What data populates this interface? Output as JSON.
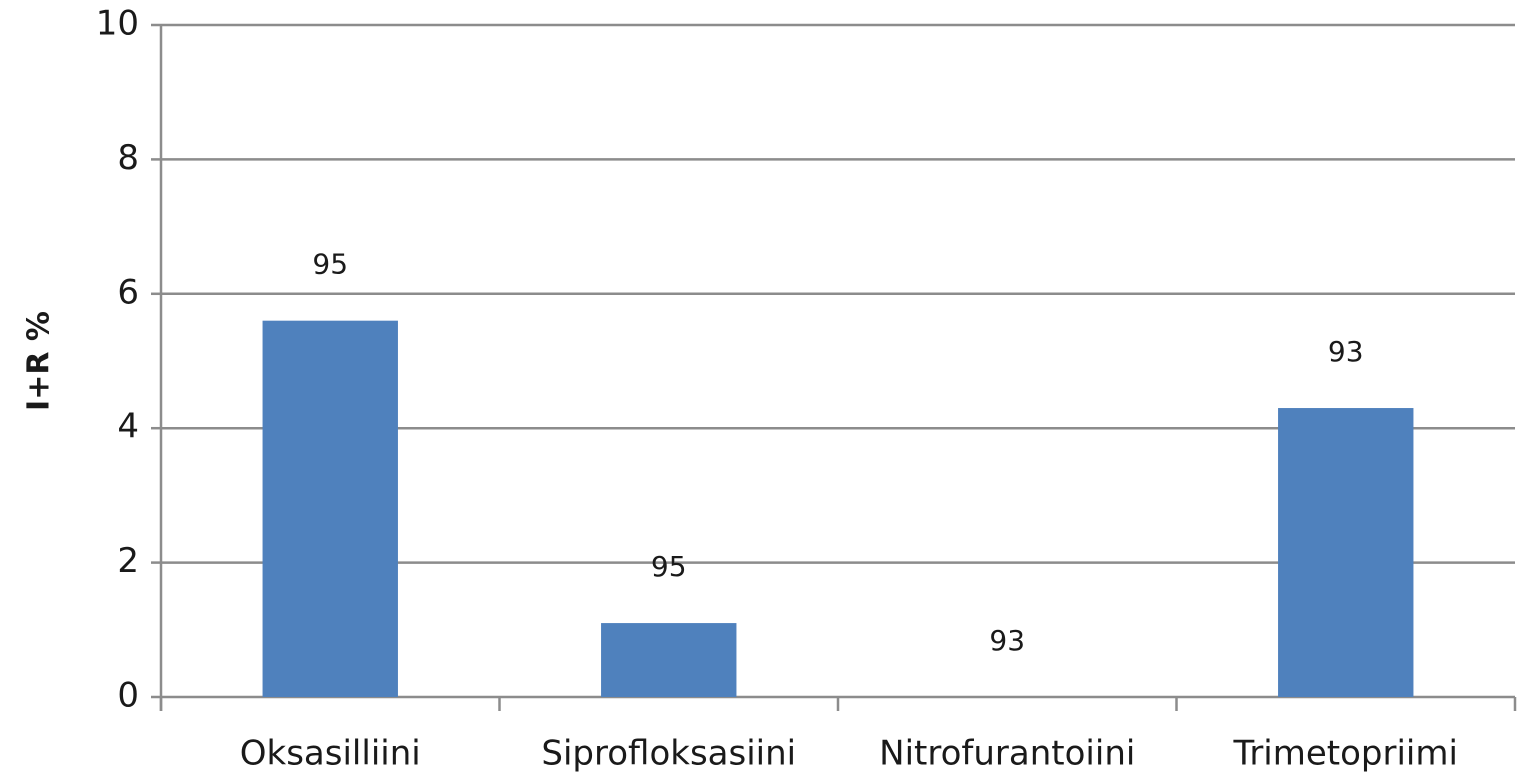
{
  "chart_data": {
    "type": "bar",
    "y_label": "I+R %",
    "categories": [
      "Oksasilliini",
      "Siprofloksasiini",
      "Nitrofurantoiini",
      "Trimetopriimi"
    ],
    "values": [
      5.6,
      1.1,
      0,
      4.3
    ],
    "annotations": [
      95,
      95,
      93,
      93
    ],
    "color": "#4f81bd",
    "ylim": [
      0,
      10
    ],
    "yticks": [
      0,
      2,
      4,
      6,
      8,
      10
    ],
    "grid": true
  }
}
